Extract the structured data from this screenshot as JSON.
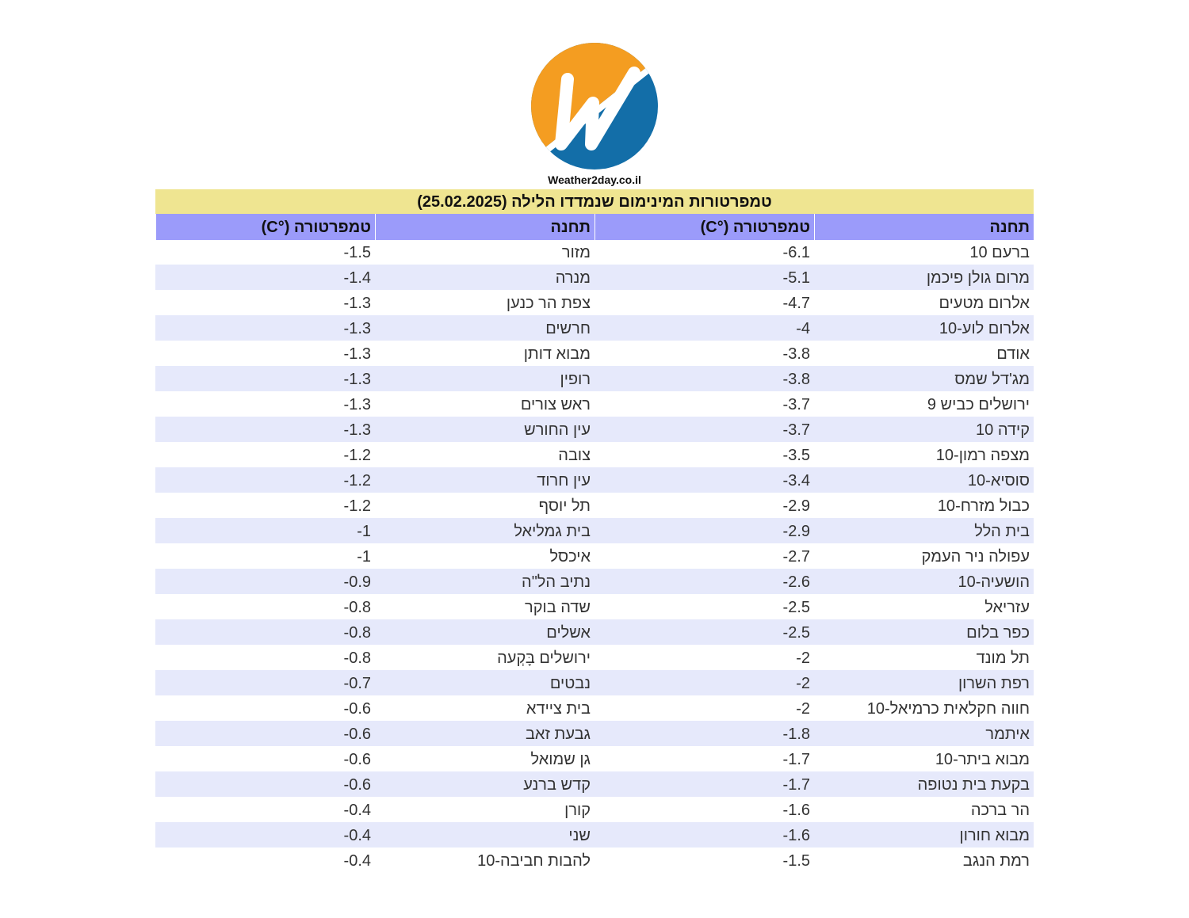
{
  "brand": {
    "site": "Weather2day.co.il",
    "colors": {
      "orange": "#f49d21",
      "blue": "#136ea8"
    }
  },
  "table": {
    "title": "טמפרטורות המינימום שנמדדו הלילה (25.02.2025)",
    "headers": [
      "תחנה",
      "טמפרטורה (°C)",
      "תחנה",
      "טמפרטורה (°C)"
    ],
    "rows": [
      [
        "ברעם 10",
        "-6.1",
        "מזור",
        "-1.5"
      ],
      [
        "מרום גולן פיכמן",
        "-5.1",
        "מנרה",
        "-1.4"
      ],
      [
        "אלרום מטעים",
        "-4.7",
        "צפת הר כנען",
        "-1.3"
      ],
      [
        "אלרום לוע-10",
        "-4",
        "חרשים",
        "-1.3"
      ],
      [
        "אודם",
        "-3.8",
        "מבוא דותן",
        "-1.3"
      ],
      [
        "מג'דל שמס",
        "-3.8",
        "רופין",
        "-1.3"
      ],
      [
        "ירושלים כביש 9",
        "-3.7",
        "ראש צורים",
        "-1.3"
      ],
      [
        "קידה 10",
        "-3.7",
        "עין החורש",
        "-1.3"
      ],
      [
        "מצפה רמון-10",
        "-3.5",
        "צובה",
        "-1.2"
      ],
      [
        "סוסיא-10",
        "-3.4",
        "עין חרוד",
        "-1.2"
      ],
      [
        "כבול מזרח-10",
        "-2.9",
        "תל יוסף",
        "-1.2"
      ],
      [
        "בית הלל",
        "-2.9",
        "בית גמליאל",
        "-1"
      ],
      [
        "עפולה ניר העמק",
        "-2.7",
        "איכסל",
        "-1"
      ],
      [
        "הושעיה-10",
        "-2.6",
        "נתיב הל\"ה",
        "-0.9"
      ],
      [
        "עזריאל",
        "-2.5",
        "שדה בוקר",
        "-0.8"
      ],
      [
        "כפר בלום",
        "-2.5",
        "אשלים",
        "-0.8"
      ],
      [
        "תל מונד",
        "-2",
        "ירושלים בָּקְעה",
        "-0.8"
      ],
      [
        "רפת השרון",
        "-2",
        "נבטים",
        "-0.7"
      ],
      [
        "חווה חקלאית כרמיאל-10",
        "-2",
        "בית ציידא",
        "-0.6"
      ],
      [
        "איתמר",
        "-1.8",
        "גבעת זאב",
        "-0.6"
      ],
      [
        "מבוא ביתר-10",
        "-1.7",
        "גן שמואל",
        "-0.6"
      ],
      [
        "בקעת בית נטופה",
        "-1.7",
        "קדש ברנע",
        "-0.6"
      ],
      [
        "הר ברכה",
        "-1.6",
        "קורן",
        "-0.4"
      ],
      [
        "מבוא חורון",
        "-1.6",
        "שני",
        "-0.4"
      ],
      [
        "רמת הנגב",
        "-1.5",
        "להבות חביבה-10",
        "-0.4"
      ]
    ]
  }
}
